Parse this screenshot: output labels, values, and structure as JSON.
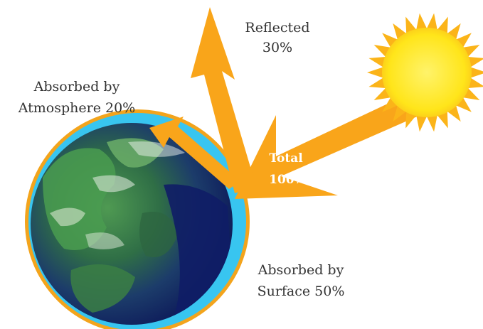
{
  "colors": {
    "background": "#ffffff",
    "arrow": "#f9a51a",
    "sun_core": "#ffe51a",
    "sun_rays": "#fbb419",
    "atmosphere": "#38c5f0",
    "atmosphere_rim": "#f3a41c",
    "ocean": "#1a2a7a",
    "land": "#3d8a45",
    "label_text": "#333333",
    "total_text": "#ffffff"
  },
  "icons": {
    "sun": "sun-icon",
    "earth": "earth-globe-icon"
  },
  "labels": {
    "reflected": {
      "line1": "Reflected",
      "line2": "30%"
    },
    "atmosphere": {
      "line1": "Absorbed by",
      "line2": "Atmosphere 20%"
    },
    "total": {
      "line1": "Total",
      "line2": "100%"
    },
    "surface": {
      "line1": "Absorbed by",
      "line2": "Surface 50%"
    }
  }
}
